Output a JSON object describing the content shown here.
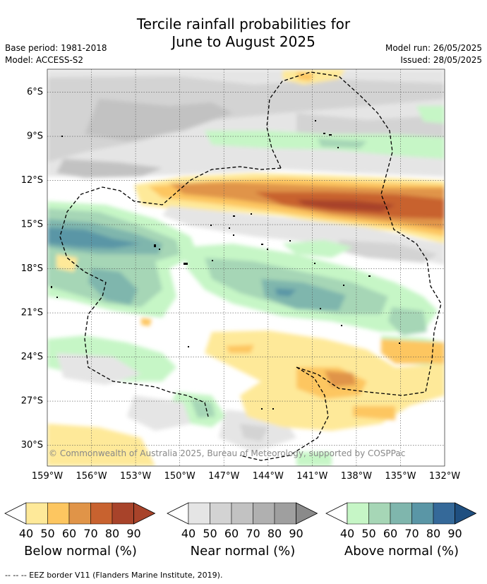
{
  "title_line1": "Tercile rainfall probabilities for",
  "title_line2": "June to August 2025",
  "base_period": "Base period: 1981-2018",
  "model": "Model: ACCESS-S2",
  "model_run": "Model run: 26/05/2025",
  "issued": "Issued: 28/05/2025",
  "map": {
    "lon_ticks": [
      "159°W",
      "156°W",
      "153°W",
      "150°W",
      "147°W",
      "144°W",
      "141°W",
      "138°W",
      "135°W",
      "132°W"
    ],
    "lat_ticks": [
      "6°S",
      "9°S",
      "12°S",
      "15°S",
      "18°S",
      "21°S",
      "24°S",
      "27°S",
      "30°S"
    ],
    "lon_range": [
      -159,
      -132
    ],
    "lat_range": [
      -31.5,
      -4.5
    ],
    "copyright": "© Commonwealth of Australia 2025, Bureau of Meteorology, supported by COSPPac"
  },
  "legends": [
    {
      "title": "Below normal (%)",
      "ticks": [
        "40",
        "50",
        "60",
        "70",
        "80",
        "90"
      ],
      "colors": [
        "#fee999",
        "#fdc660",
        "#e09448",
        "#c8622f",
        "#a8432a"
      ],
      "low_color": "#ffffff",
      "high_color": "#a8432a"
    },
    {
      "title": "Near normal (%)",
      "ticks": [
        "40",
        "50",
        "60",
        "70",
        "80",
        "90"
      ],
      "colors": [
        "#e5e5e5",
        "#d3d3d3",
        "#c2c2c2",
        "#b0b0b0",
        "#9f9f9f"
      ],
      "low_color": "#ffffff",
      "high_color": "#8a8a8a"
    },
    {
      "title": "Above normal (%)",
      "ticks": [
        "40",
        "50",
        "60",
        "70",
        "80",
        "90"
      ],
      "colors": [
        "#c6f6c6",
        "#a6d6b6",
        "#7fb6ad",
        "#5a96a6",
        "#356999"
      ],
      "low_color": "#ffffff",
      "high_color": "#1f4f80"
    }
  ],
  "footnote": "--  --  -- EEZ border V11 (Flanders Marine Institute, 2019)."
}
